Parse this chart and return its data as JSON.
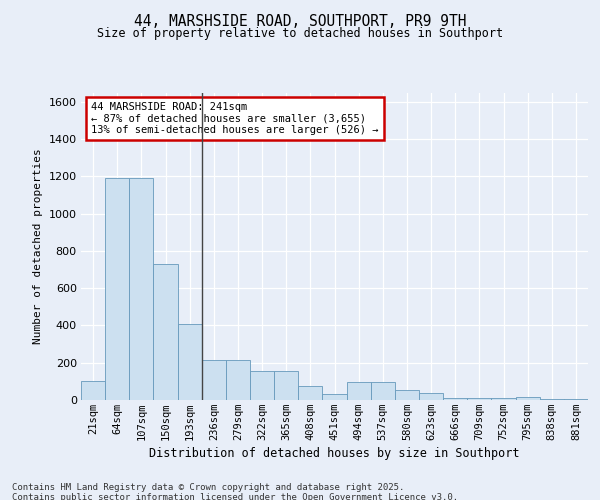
{
  "title": "44, MARSHSIDE ROAD, SOUTHPORT, PR9 9TH",
  "subtitle": "Size of property relative to detached houses in Southport",
  "xlabel": "Distribution of detached houses by size in Southport",
  "ylabel": "Number of detached properties",
  "categories": [
    "21sqm",
    "64sqm",
    "107sqm",
    "150sqm",
    "193sqm",
    "236sqm",
    "279sqm",
    "322sqm",
    "365sqm",
    "408sqm",
    "451sqm",
    "494sqm",
    "537sqm",
    "580sqm",
    "623sqm",
    "666sqm",
    "709sqm",
    "752sqm",
    "795sqm",
    "838sqm",
    "881sqm"
  ],
  "values": [
    100,
    1190,
    1190,
    730,
    410,
    215,
    215,
    155,
    155,
    75,
    30,
    95,
    95,
    55,
    35,
    10,
    10,
    10,
    18,
    5,
    5
  ],
  "bar_color": "#cce0f0",
  "bar_edge_color": "#6699bb",
  "vline_index": 5,
  "marker_label_line1": "44 MARSHSIDE ROAD: 241sqm",
  "marker_label_line2": "← 87% of detached houses are smaller (3,655)",
  "marker_label_line3": "13% of semi-detached houses are larger (526) →",
  "annotation_box_facecolor": "#ffffff",
  "annotation_box_edgecolor": "#cc0000",
  "ylim": [
    0,
    1650
  ],
  "yticks": [
    0,
    200,
    400,
    600,
    800,
    1000,
    1200,
    1400,
    1600
  ],
  "bg_color": "#e8eef8",
  "plot_bg_color": "#e8eef8",
  "grid_color": "#ffffff",
  "footer_line1": "Contains HM Land Registry data © Crown copyright and database right 2025.",
  "footer_line2": "Contains public sector information licensed under the Open Government Licence v3.0."
}
